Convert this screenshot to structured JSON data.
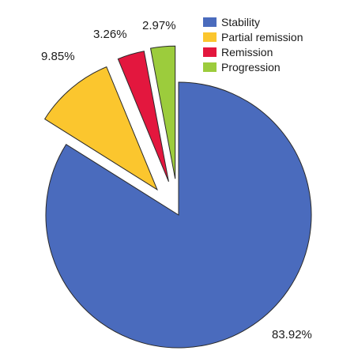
{
  "chart_data": {
    "type": "pie",
    "title": "",
    "legend_position": "top-right",
    "exploded": true,
    "slices": [
      {
        "name": "Stability",
        "value": 83.92,
        "label": "83.92%",
        "color": "#4a6bbd"
      },
      {
        "name": "Partial remission",
        "value": 9.85,
        "label": "9.85%",
        "color": "#fbc62e"
      },
      {
        "name": "Remission",
        "value": 3.26,
        "label": "3.26%",
        "color": "#e3173e"
      },
      {
        "name": "Progression",
        "value": 2.97,
        "label": "2.97%",
        "color": "#9ccc3c"
      }
    ]
  }
}
